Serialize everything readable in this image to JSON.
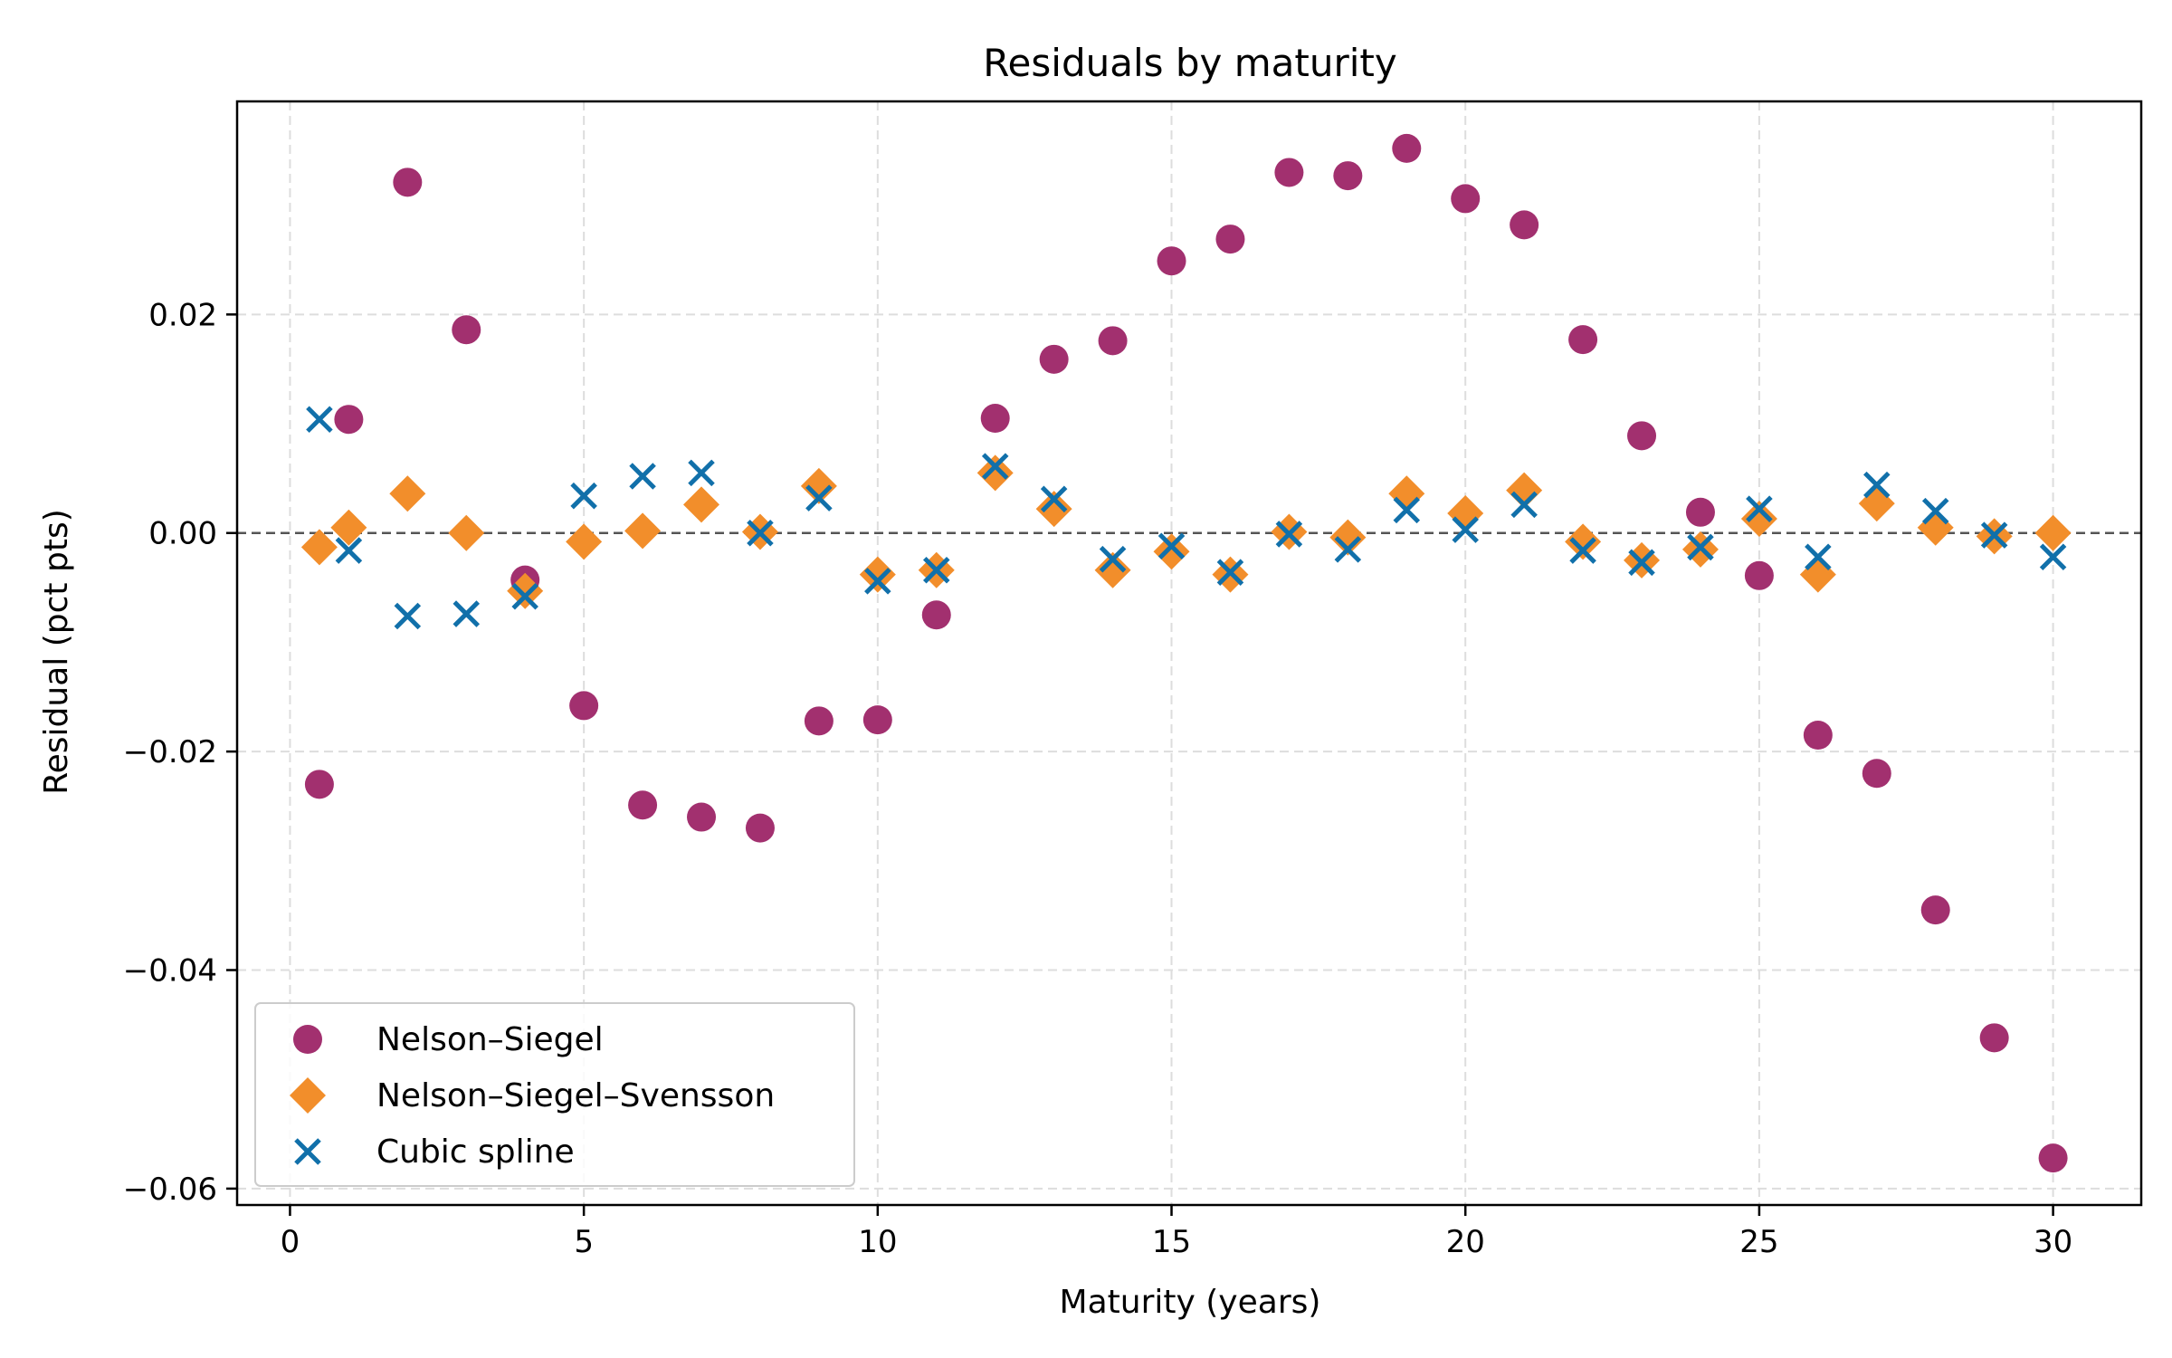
{
  "chart_data": {
    "type": "scatter",
    "title": "Residuals by maturity",
    "xlabel": "Maturity (years)",
    "ylabel": "Residual (pct pts)",
    "xlim": [
      -0.9,
      31.5
    ],
    "ylim": [
      -0.0615,
      0.0395
    ],
    "xticks": [
      0,
      5,
      10,
      15,
      20,
      25,
      30
    ],
    "xtick_labels": [
      "0",
      "5",
      "10",
      "15",
      "20",
      "25",
      "30"
    ],
    "yticks": [
      0.02,
      0.0,
      -0.02,
      -0.04,
      -0.06
    ],
    "ytick_labels": [
      "0.02",
      "0.00",
      "−0.02",
      "−0.04",
      "−0.06"
    ],
    "grid": true,
    "legend_position": "lower-left",
    "reference_line_y": 0,
    "x": [
      0.5,
      1,
      2,
      3,
      4,
      5,
      6,
      7,
      8,
      9,
      10,
      11,
      12,
      13,
      14,
      15,
      16,
      17,
      18,
      19,
      20,
      21,
      22,
      23,
      24,
      25,
      26,
      27,
      28,
      29,
      30
    ],
    "series": [
      {
        "name": "Nelson–Siegel",
        "marker": "circle",
        "color": "#a2306f",
        "values": [
          -0.023,
          0.0104,
          0.0321,
          0.0186,
          -0.0043,
          -0.0158,
          -0.0249,
          -0.026,
          -0.027,
          -0.0172,
          -0.0171,
          -0.0075,
          0.0105,
          0.0159,
          0.0176,
          0.0249,
          0.0269,
          0.033,
          0.0327,
          0.0352,
          0.0306,
          0.0282,
          0.0177,
          0.0089,
          0.0019,
          -0.0039,
          -0.0185,
          -0.022,
          -0.0345,
          -0.0462,
          -0.0572
        ]
      },
      {
        "name": "Nelson–Siegel–Svensson",
        "marker": "diamond",
        "color": "#f28e2b",
        "values": [
          -0.0013,
          0.0005,
          0.0036,
          0.0,
          -0.0053,
          -0.0008,
          0.0002,
          0.0026,
          0.0001,
          0.0043,
          -0.0038,
          -0.0034,
          0.0055,
          0.0022,
          -0.0034,
          -0.0017,
          -0.0038,
          0.0001,
          -0.0004,
          0.0036,
          0.0018,
          0.0039,
          -0.0008,
          -0.0025,
          -0.0015,
          0.0013,
          -0.0038,
          0.0027,
          0.0005,
          -0.0003,
          0.0
        ]
      },
      {
        "name": "Cubic spline",
        "marker": "x",
        "color": "#1170aa",
        "values": [
          0.0104,
          -0.0016,
          -0.0076,
          -0.0074,
          -0.0058,
          0.0034,
          0.0052,
          0.0055,
          0.0,
          0.0032,
          -0.0044,
          -0.0034,
          0.0061,
          0.0031,
          -0.0024,
          -0.0012,
          -0.0036,
          -0.0001,
          -0.0015,
          0.0021,
          0.0003,
          0.0026,
          -0.0016,
          -0.0027,
          -0.0013,
          0.0022,
          -0.0022,
          0.0044,
          0.002,
          -0.0002,
          -0.0022
        ]
      }
    ]
  }
}
